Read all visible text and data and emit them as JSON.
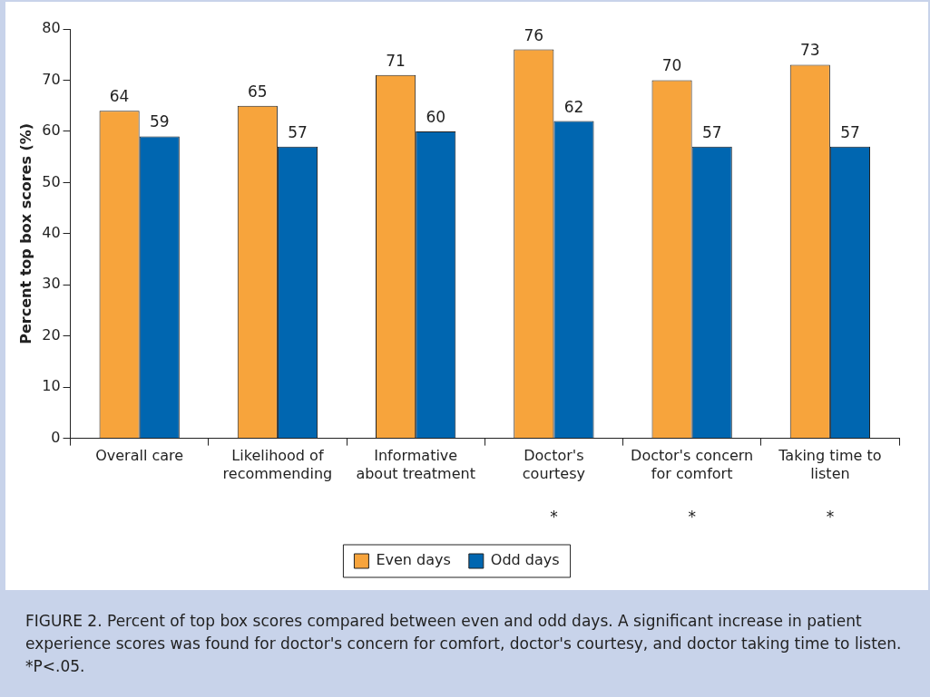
{
  "chart_data": {
    "type": "bar",
    "ylabel": "Percent top box scores (%)",
    "categories": [
      "Overall care",
      "Likelihood of recommending",
      "Informative about treatment",
      "Doctor's courtesy",
      "Doctor's concern for comfort",
      "Taking time to listen"
    ],
    "series": [
      {
        "name": "Even days",
        "color": "#f7a43c",
        "values": [
          64,
          65,
          71,
          76,
          70,
          73
        ]
      },
      {
        "name": "Odd days",
        "color": "#0066b0",
        "values": [
          59,
          57,
          60,
          62,
          57,
          57
        ]
      }
    ],
    "ylim": [
      0,
      80
    ],
    "yticks": [
      0,
      10,
      20,
      30,
      40,
      50,
      60,
      70,
      80
    ],
    "grid": false,
    "legend": "bottom",
    "data_labels": true,
    "annotations": [
      "*",
      "*",
      "*",
      "FIGURE 2. Percent of top box scores compared between even and odd days. A significant increase in patient experience scores was found for doctor's concern for comfort, doctor's courtesy, and doctor taking time to listen. *P<.05."
    ]
  }
}
